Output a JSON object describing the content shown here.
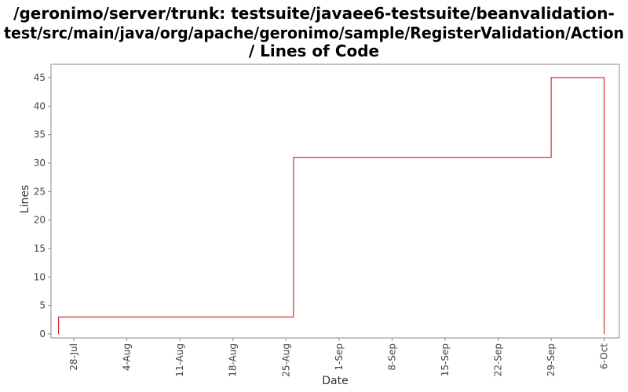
{
  "chart_data": {
    "type": "step",
    "title": [
      "/geronimo/server/trunk: testsuite/javaee6-testsuite/beanvalidation-",
      "test/src/main/java/org/apache/geronimo/sample/RegisterValidation/Action",
      "/ Lines of Code"
    ],
    "x_label": "Date",
    "y_label": "Lines",
    "series": [
      {
        "name": "Lines of Code",
        "color": "#cc0000",
        "x": [
          "26-Jul",
          "26-Aug",
          "29-Sep",
          "6-Oct"
        ],
        "values": [
          3,
          31,
          45,
          45
        ]
      }
    ],
    "xlim": [
      "25-Jul",
      "8-Oct"
    ],
    "xticks": [
      "28-Jul",
      "4-Aug",
      "11-Aug",
      "18-Aug",
      "25-Aug",
      "1-Sep",
      "8-Sep",
      "15-Sep",
      "22-Sep",
      "29-Sep",
      "6-Oct"
    ],
    "ylim": [
      0,
      45
    ],
    "yticks": [
      0,
      5,
      10,
      15,
      20,
      25,
      30,
      35,
      40,
      45
    ]
  }
}
